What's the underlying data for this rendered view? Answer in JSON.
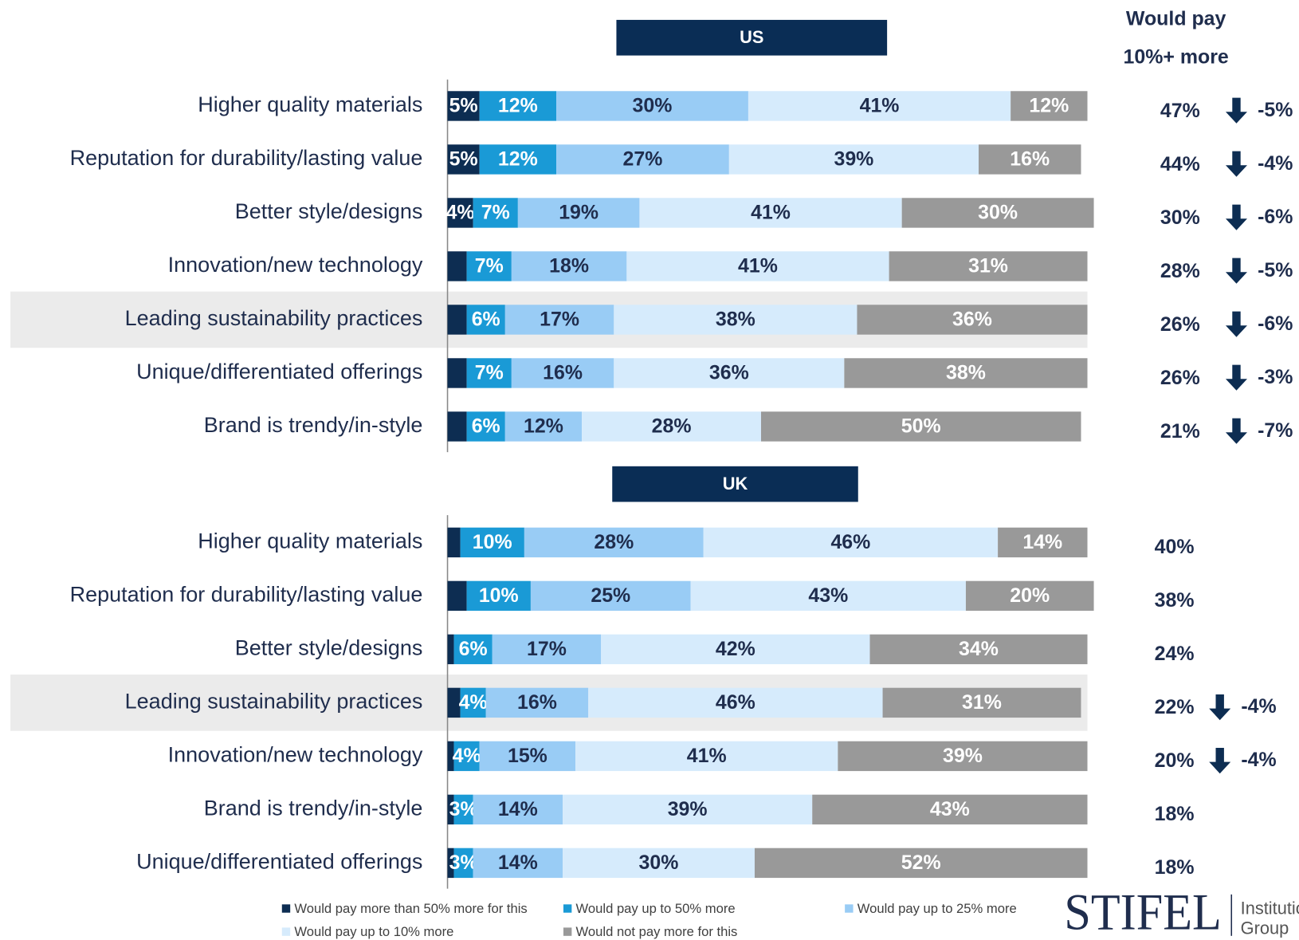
{
  "summary_header": [
    "Would pay",
    "10%+ more"
  ],
  "logo": {
    "name": "STIFEL",
    "sub": [
      "Institutional",
      "Group"
    ]
  },
  "chart_data": [
    {
      "type": "bar",
      "stacked": true,
      "orientation": "horizontal",
      "title": "US",
      "xlim": [
        0,
        100
      ],
      "highlight_category": 4,
      "categories": [
        "Higher quality materials",
        "Reputation for durability/lasting value",
        "Better style/designs",
        "Innovation/new technology",
        "Leading sustainability practices",
        "Unique/differentiated offerings",
        "Brand is trendy/in-style"
      ],
      "series": [
        {
          "name": "Would pay more than 50% more for this",
          "color": "#0d2d52",
          "values": [
            5,
            5,
            4,
            3,
            3,
            3,
            3
          ],
          "value_labels": [
            "5%",
            "5%",
            "4%",
            null,
            null,
            null,
            null
          ]
        },
        {
          "name": "Would pay up to 50% more",
          "color": "#1a9ad6",
          "values": [
            12,
            12,
            7,
            7,
            6,
            7,
            6
          ],
          "value_labels": [
            "12%",
            "12%",
            "7%",
            "7%",
            "6%",
            "7%",
            "6%"
          ]
        },
        {
          "name": "Would pay up to 25% more",
          "color": "#99ccf5",
          "values": [
            30,
            27,
            19,
            18,
            17,
            16,
            12
          ],
          "value_labels": [
            "30%",
            "27%",
            "19%",
            "18%",
            "17%",
            "16%",
            "12%"
          ]
        },
        {
          "name": "Would pay up to 10% more",
          "color": "#d6ebfc",
          "values": [
            41,
            39,
            41,
            41,
            38,
            36,
            28
          ],
          "value_labels": [
            "41%",
            "39%",
            "41%",
            "41%",
            "38%",
            "36%",
            "28%"
          ]
        },
        {
          "name": "Would not pay more for this",
          "color": "#999999",
          "values": [
            12,
            16,
            30,
            31,
            36,
            38,
            50
          ],
          "value_labels": [
            "12%",
            "16%",
            "30%",
            "31%",
            "36%",
            "38%",
            "50%"
          ]
        }
      ],
      "summary": {
        "values": [
          47,
          44,
          30,
          28,
          26,
          26,
          21
        ],
        "value_labels": [
          "47%",
          "44%",
          "30%",
          "28%",
          "26%",
          "26%",
          "21%"
        ],
        "changes": [
          -5,
          -4,
          -6,
          -5,
          -6,
          -3,
          -7
        ],
        "change_labels": [
          "-5%",
          "-4%",
          "-6%",
          "-5%",
          "-6%",
          "-3%",
          "-7%"
        ]
      }
    },
    {
      "type": "bar",
      "stacked": true,
      "orientation": "horizontal",
      "title": "UK",
      "xlim": [
        0,
        100
      ],
      "highlight_category": 3,
      "categories": [
        "Higher quality materials",
        "Reputation for durability/lasting value",
        "Better style/designs",
        "Leading sustainability practices",
        "Innovation/new technology",
        "Brand is trendy/in-style",
        "Unique/differentiated offerings"
      ],
      "series": [
        {
          "name": "Would pay more than 50% more for this",
          "color": "#0d2d52",
          "values": [
            2,
            3,
            1,
            2,
            1,
            1,
            1
          ],
          "value_labels": [
            null,
            null,
            null,
            null,
            null,
            null,
            null
          ]
        },
        {
          "name": "Would pay up to 50% more",
          "color": "#1a9ad6",
          "values": [
            10,
            10,
            6,
            4,
            4,
            3,
            3
          ],
          "value_labels": [
            "10%",
            "10%",
            "6%",
            "4%",
            "4%",
            "3%",
            "3%"
          ]
        },
        {
          "name": "Would pay up to 25% more",
          "color": "#99ccf5",
          "values": [
            28,
            25,
            17,
            16,
            15,
            14,
            14
          ],
          "value_labels": [
            "28%",
            "25%",
            "17%",
            "16%",
            "15%",
            "14%",
            "14%"
          ]
        },
        {
          "name": "Would pay up to 10% more",
          "color": "#d6ebfc",
          "values": [
            46,
            43,
            42,
            46,
            41,
            39,
            30
          ],
          "value_labels": [
            "46%",
            "43%",
            "42%",
            "46%",
            "41%",
            "39%",
            "30%"
          ]
        },
        {
          "name": "Would not pay more for this",
          "color": "#999999",
          "values": [
            14,
            20,
            34,
            31,
            39,
            43,
            52
          ],
          "value_labels": [
            "14%",
            "20%",
            "34%",
            "31%",
            "39%",
            "43%",
            "52%"
          ]
        }
      ],
      "summary": {
        "values": [
          40,
          38,
          24,
          22,
          20,
          18,
          18
        ],
        "value_labels": [
          "40%",
          "38%",
          "24%",
          "22%",
          "20%",
          "18%",
          "18%"
        ],
        "changes": [
          null,
          null,
          null,
          -4,
          -4,
          null,
          null
        ],
        "change_labels": [
          null,
          null,
          null,
          "-4%",
          "-4%",
          null,
          null
        ]
      }
    }
  ]
}
